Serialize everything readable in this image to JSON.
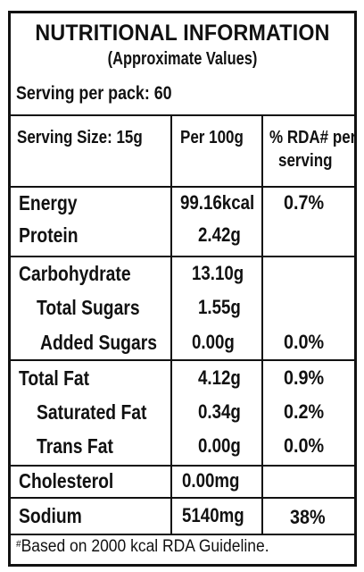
{
  "title": "NUTRITIONAL INFORMATION",
  "subtitle": "(Approximate Values)",
  "serving_per_pack": "Serving per pack: 60",
  "headers": {
    "serving_size": "Serving Size: 15g",
    "per100g": "Per 100g",
    "rda_line1": "% RDA# per",
    "rda_line2": "serving"
  },
  "rows": [
    {
      "name": "Energy",
      "per100g": "99.16kcal",
      "rda": "0.7%"
    },
    {
      "name": "Protein",
      "per100g": "2.42g",
      "rda": ""
    },
    {
      "name": "Carbohydrate",
      "per100g": "13.10g",
      "rda": ""
    },
    {
      "name": "Total Sugars",
      "per100g": "1.55g",
      "rda": ""
    },
    {
      "name": "Added Sugars",
      "per100g": "0.00g",
      "rda": "0.0%"
    },
    {
      "name": "Total Fat",
      "per100g": "4.12g",
      "rda": "0.9%"
    },
    {
      "name": "Saturated Fat",
      "per100g": "0.34g",
      "rda": "0.2%"
    },
    {
      "name": "Trans Fat",
      "per100g": "0.00g",
      "rda": "0.0%"
    },
    {
      "name": "Cholesterol",
      "per100g": "0.00mg",
      "rda": ""
    },
    {
      "name": "Sodium",
      "per100g": "5140mg",
      "rda": "38%"
    }
  ],
  "footnote_mark": "#",
  "footnote": "Based on 2000 kcal RDA Guideline."
}
